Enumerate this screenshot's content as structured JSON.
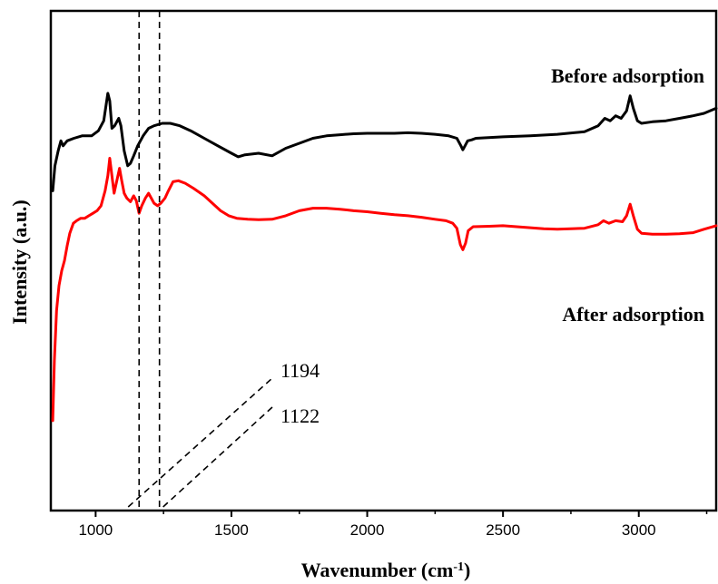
{
  "chart_data": {
    "type": "line",
    "title": "",
    "xlabel": "Wavenumber (cm",
    "xlabel_sup": "-1",
    "xlabel_suffix": ")",
    "ylabel": "Intensity (a.u.)",
    "xlim": [
      835,
      3285
    ],
    "ylim": [
      0,
      100
    ],
    "xticks": [
      1000,
      1500,
      2000,
      2500,
      3000
    ],
    "xtick_labels": [
      "1000",
      "1500",
      "2000",
      "2500",
      "3000"
    ],
    "grid": false,
    "y_ticks_shown": false,
    "series": [
      {
        "name": "Before adsorption",
        "color": "#000000",
        "points": [
          [
            842,
            64
          ],
          [
            850,
            69
          ],
          [
            862,
            72
          ],
          [
            872,
            74
          ],
          [
            880,
            73
          ],
          [
            895,
            74
          ],
          [
            920,
            74.5
          ],
          [
            950,
            75
          ],
          [
            985,
            75
          ],
          [
            1010,
            76
          ],
          [
            1030,
            78
          ],
          [
            1045,
            83.5
          ],
          [
            1052,
            82
          ],
          [
            1060,
            76.5
          ],
          [
            1070,
            77
          ],
          [
            1085,
            78.5
          ],
          [
            1093,
            77
          ],
          [
            1105,
            72
          ],
          [
            1118,
            69
          ],
          [
            1128,
            69.5
          ],
          [
            1140,
            71
          ],
          [
            1155,
            73
          ],
          [
            1175,
            75
          ],
          [
            1195,
            76.5
          ],
          [
            1215,
            77
          ],
          [
            1245,
            77.5
          ],
          [
            1275,
            77.5
          ],
          [
            1310,
            77
          ],
          [
            1350,
            76
          ],
          [
            1400,
            74.5
          ],
          [
            1450,
            73
          ],
          [
            1500,
            71.5
          ],
          [
            1525,
            70.8
          ],
          [
            1550,
            71.2
          ],
          [
            1600,
            71.5
          ],
          [
            1650,
            71
          ],
          [
            1700,
            72.5
          ],
          [
            1750,
            73.5
          ],
          [
            1800,
            74.5
          ],
          [
            1850,
            75
          ],
          [
            1900,
            75.2
          ],
          [
            1950,
            75.4
          ],
          [
            2000,
            75.5
          ],
          [
            2050,
            75.5
          ],
          [
            2100,
            75.5
          ],
          [
            2150,
            75.6
          ],
          [
            2200,
            75.5
          ],
          [
            2250,
            75.3
          ],
          [
            2300,
            75
          ],
          [
            2330,
            74.5
          ],
          [
            2345,
            73
          ],
          [
            2352,
            72.2
          ],
          [
            2360,
            73
          ],
          [
            2370,
            74
          ],
          [
            2385,
            74.2
          ],
          [
            2400,
            74.5
          ],
          [
            2500,
            74.8
          ],
          [
            2600,
            75
          ],
          [
            2700,
            75.3
          ],
          [
            2800,
            75.8
          ],
          [
            2850,
            77
          ],
          [
            2875,
            78.5
          ],
          [
            2895,
            78
          ],
          [
            2915,
            79
          ],
          [
            2935,
            78.5
          ],
          [
            2955,
            80
          ],
          [
            2968,
            83
          ],
          [
            2980,
            80.5
          ],
          [
            2995,
            78
          ],
          [
            3010,
            77.5
          ],
          [
            3050,
            77.8
          ],
          [
            3100,
            78
          ],
          [
            3150,
            78.5
          ],
          [
            3200,
            79
          ],
          [
            3240,
            79.5
          ],
          [
            3285,
            80.5
          ]
        ]
      },
      {
        "name": "After adsorption",
        "color": "#ff0000",
        "points": [
          [
            842,
            18
          ],
          [
            848,
            30
          ],
          [
            856,
            40
          ],
          [
            865,
            45
          ],
          [
            875,
            48
          ],
          [
            885,
            50
          ],
          [
            895,
            53
          ],
          [
            905,
            55.5
          ],
          [
            918,
            57.5
          ],
          [
            930,
            58
          ],
          [
            945,
            58.5
          ],
          [
            960,
            58.5
          ],
          [
            975,
            59
          ],
          [
            990,
            59.5
          ],
          [
            1005,
            60
          ],
          [
            1020,
            61
          ],
          [
            1035,
            64
          ],
          [
            1045,
            67
          ],
          [
            1052,
            70.5
          ],
          [
            1060,
            67
          ],
          [
            1068,
            63.5
          ],
          [
            1080,
            66.5
          ],
          [
            1088,
            68.5
          ],
          [
            1096,
            66
          ],
          [
            1105,
            63.5
          ],
          [
            1115,
            62.5
          ],
          [
            1128,
            61.8
          ],
          [
            1140,
            63
          ],
          [
            1150,
            62
          ],
          [
            1160,
            59.5
          ],
          [
            1170,
            61
          ],
          [
            1183,
            62.5
          ],
          [
            1195,
            63.5
          ],
          [
            1205,
            62.5
          ],
          [
            1215,
            61.5
          ],
          [
            1228,
            61
          ],
          [
            1240,
            61.5
          ],
          [
            1255,
            62.5
          ],
          [
            1268,
            64
          ],
          [
            1285,
            65.8
          ],
          [
            1305,
            66
          ],
          [
            1330,
            65.5
          ],
          [
            1360,
            64.5
          ],
          [
            1400,
            63
          ],
          [
            1430,
            61.5
          ],
          [
            1460,
            60
          ],
          [
            1490,
            59
          ],
          [
            1520,
            58.5
          ],
          [
            1560,
            58.3
          ],
          [
            1600,
            58.2
          ],
          [
            1650,
            58.3
          ],
          [
            1700,
            59
          ],
          [
            1750,
            60
          ],
          [
            1800,
            60.5
          ],
          [
            1850,
            60.5
          ],
          [
            1900,
            60.3
          ],
          [
            1950,
            60
          ],
          [
            2000,
            59.8
          ],
          [
            2050,
            59.5
          ],
          [
            2100,
            59.2
          ],
          [
            2150,
            59
          ],
          [
            2200,
            58.7
          ],
          [
            2250,
            58.3
          ],
          [
            2290,
            58
          ],
          [
            2315,
            57.5
          ],
          [
            2330,
            56.5
          ],
          [
            2343,
            53.2
          ],
          [
            2352,
            52.2
          ],
          [
            2362,
            53.5
          ],
          [
            2372,
            56
          ],
          [
            2390,
            56.8
          ],
          [
            2450,
            56.9
          ],
          [
            2500,
            57
          ],
          [
            2550,
            56.8
          ],
          [
            2600,
            56.6
          ],
          [
            2650,
            56.4
          ],
          [
            2700,
            56.3
          ],
          [
            2750,
            56.4
          ],
          [
            2800,
            56.5
          ],
          [
            2850,
            57.2
          ],
          [
            2870,
            58
          ],
          [
            2890,
            57.5
          ],
          [
            2915,
            58
          ],
          [
            2940,
            57.8
          ],
          [
            2955,
            59
          ],
          [
            2968,
            61.3
          ],
          [
            2980,
            59
          ],
          [
            2995,
            56.3
          ],
          [
            3010,
            55.5
          ],
          [
            3050,
            55.3
          ],
          [
            3100,
            55.3
          ],
          [
            3150,
            55.4
          ],
          [
            3200,
            55.6
          ],
          [
            3240,
            56.3
          ],
          [
            3285,
            57
          ]
        ]
      }
    ],
    "reference_lines": [
      {
        "x": 1160,
        "label": "1122"
      },
      {
        "x": 1235,
        "label": "1194"
      }
    ]
  }
}
